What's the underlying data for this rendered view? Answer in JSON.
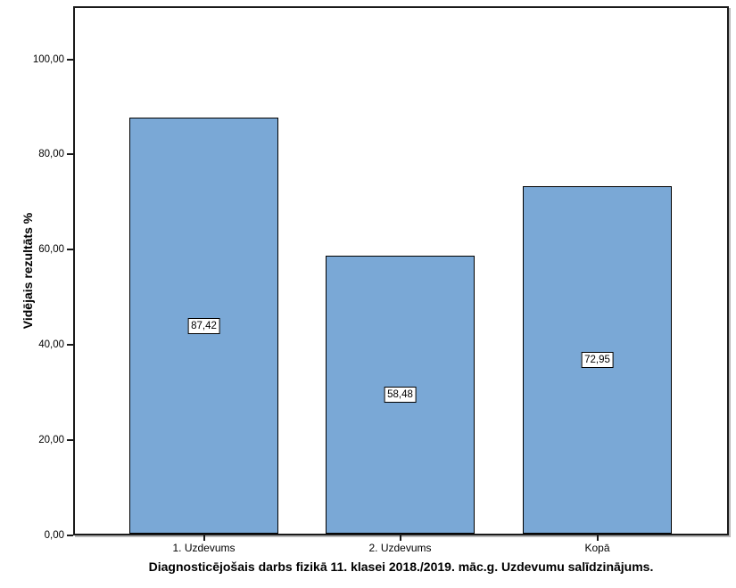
{
  "chart_data": {
    "type": "bar",
    "title": "Diagnosticējošais darbs fizikā 11. klasei 2018./2019. māc.g. Uzdevumu salīdzinājums.",
    "ylabel": "Vidējais rezultāts %",
    "xlabel": "",
    "categories": [
      "1. Uzdevums",
      "2. Uzdevums",
      "Kopā"
    ],
    "values": [
      87.42,
      58.48,
      72.95
    ],
    "value_labels": [
      "87,42",
      "58,48",
      "72,95"
    ],
    "yticks": [
      {
        "value": 0,
        "label": "0,00"
      },
      {
        "value": 20,
        "label": "20,00"
      },
      {
        "value": 40,
        "label": "40,00"
      },
      {
        "value": 60,
        "label": "60,00"
      },
      {
        "value": 80,
        "label": "80,00"
      },
      {
        "value": 100,
        "label": "100,00"
      }
    ],
    "ylim": [
      0,
      111
    ],
    "grid": false,
    "legend_position": "none",
    "colors": {
      "bar_fill": "#7AA8D6",
      "bar_border": "#000000",
      "frame": "#1A1A1A",
      "text": "#000000",
      "background": "#FFFFFF"
    }
  }
}
